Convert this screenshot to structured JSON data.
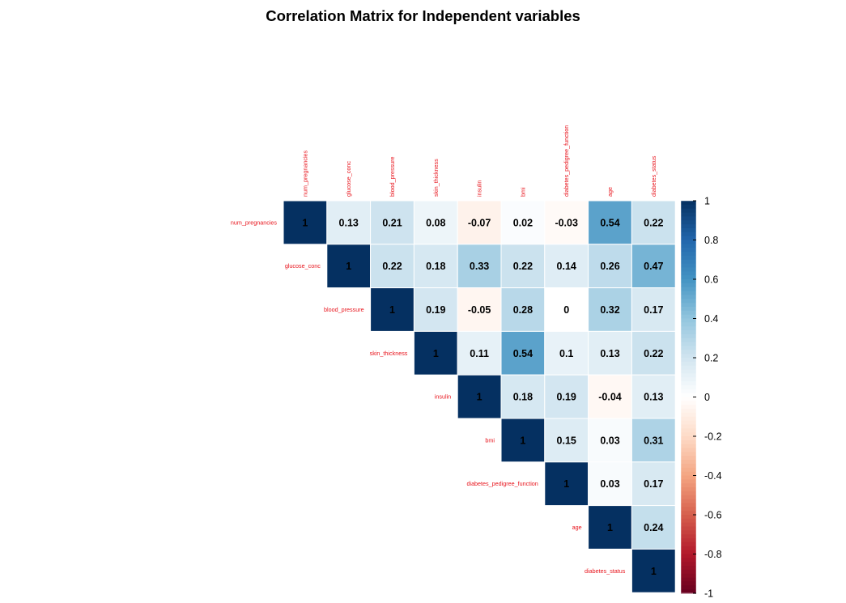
{
  "chart_title": "Correlation Matrix for Independent variables",
  "colors": {
    "label_text": "#e8141c",
    "value_text": "#000000",
    "cell_border": "#ffffff",
    "scale_low": "#67001f",
    "scale_mid": "#ffffff",
    "scale_high": "#053061"
  },
  "chart_data": {
    "type": "heatmap",
    "subtype": "correlation-matrix-upper-triangle",
    "title": "Correlation Matrix for Independent variables",
    "variables": [
      "num_pregnancies",
      "glucose_conc",
      "blood_pressure",
      "skin_thickness",
      "insulin",
      "bmi",
      "diabetes_pedigree_function",
      "age",
      "diabetes_status"
    ],
    "matrix": [
      [
        1,
        0.13,
        0.21,
        0.08,
        -0.07,
        0.02,
        -0.03,
        0.54,
        0.22
      ],
      [
        null,
        1,
        0.22,
        0.18,
        0.33,
        0.22,
        0.14,
        0.26,
        0.47
      ],
      [
        null,
        null,
        1,
        0.19,
        -0.05,
        0.28,
        0,
        0.32,
        0.17
      ],
      [
        null,
        null,
        null,
        1,
        0.11,
        0.54,
        0.1,
        0.13,
        0.22
      ],
      [
        null,
        null,
        null,
        null,
        1,
        0.18,
        0.19,
        -0.04,
        0.13
      ],
      [
        null,
        null,
        null,
        null,
        null,
        1,
        0.15,
        0.03,
        0.31
      ],
      [
        null,
        null,
        null,
        null,
        null,
        null,
        1,
        0.03,
        0.17
      ],
      [
        null,
        null,
        null,
        null,
        null,
        null,
        null,
        1,
        0.24
      ],
      [
        null,
        null,
        null,
        null,
        null,
        null,
        null,
        null,
        1
      ]
    ],
    "color_scale": {
      "range": [
        -1,
        1
      ],
      "ticks": [
        "1",
        "0.8",
        "0.6",
        "0.4",
        "0.2",
        "0",
        "-0.2",
        "-0.4",
        "-0.6",
        "-0.8",
        "-1"
      ],
      "palette": "RdBu"
    },
    "legend_placement": "right"
  }
}
